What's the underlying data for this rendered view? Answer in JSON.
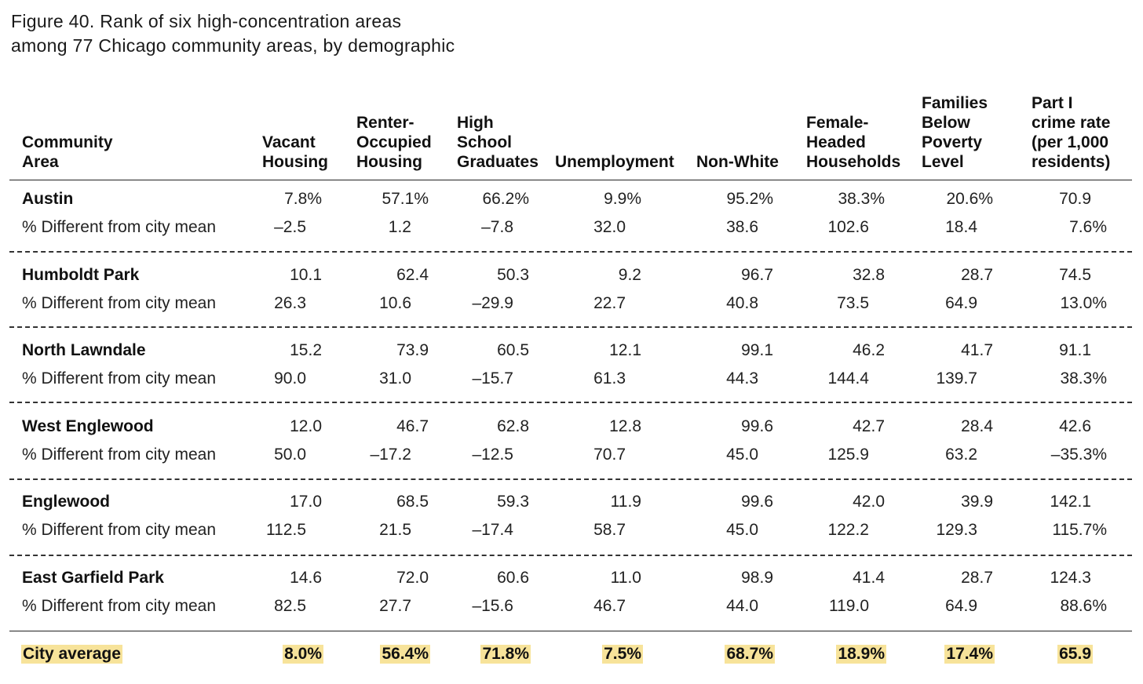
{
  "title": {
    "line1": "Figure 40. Rank of six high-concentration areas",
    "line2": "among 77 Chicago community areas, by demographic"
  },
  "columns": [
    {
      "lines": [
        "Community",
        "Area"
      ]
    },
    {
      "lines": [
        "Vacant",
        "Housing"
      ]
    },
    {
      "lines": [
        "Renter-",
        "Occupied",
        "Housing"
      ]
    },
    {
      "lines": [
        "High",
        "School",
        "Graduates"
      ]
    },
    {
      "lines": [
        "Unemployment"
      ]
    },
    {
      "lines": [
        "Non-White"
      ]
    },
    {
      "lines": [
        "Female-",
        "Headed",
        "Households"
      ]
    },
    {
      "lines": [
        "Families",
        "Below",
        "Poverty",
        "Level"
      ]
    },
    {
      "lines": [
        "Part I",
        "crime rate",
        "(per 1,000",
        "residents)"
      ]
    }
  ],
  "rows": [
    {
      "name": "Austin",
      "values": [
        "7.8%",
        "57.1%",
        "66.2%",
        "9.9%",
        "95.2%",
        "38.3%",
        "20.6%",
        "70.9"
      ],
      "diff_label": "% Different from city mean",
      "diffs": [
        "–2.5",
        "1.2",
        "–7.8",
        "32.0",
        "38.6",
        "102.6",
        "18.4",
        "7.6%"
      ]
    },
    {
      "name": "Humboldt Park",
      "values": [
        "10.1",
        "62.4",
        "50.3",
        "9.2",
        "96.7",
        "32.8",
        "28.7",
        "74.5"
      ],
      "diff_label": "% Different from city mean",
      "diffs": [
        "26.3",
        "10.6",
        "–29.9",
        "22.7",
        "40.8",
        "73.5",
        "64.9",
        "13.0%"
      ]
    },
    {
      "name": "North Lawndale",
      "values": [
        "15.2",
        "73.9",
        "60.5",
        "12.1",
        "99.1",
        "46.2",
        "41.7",
        "91.1"
      ],
      "diff_label": "% Different from city mean",
      "diffs": [
        "90.0",
        "31.0",
        "–15.7",
        "61.3",
        "44.3",
        "144.4",
        "139.7",
        "38.3%"
      ]
    },
    {
      "name": "West Englewood",
      "values": [
        "12.0",
        "46.7",
        "62.8",
        "12.8",
        "99.6",
        "42.7",
        "28.4",
        "42.6"
      ],
      "diff_label": "% Different from city mean",
      "diffs": [
        "50.0",
        "–17.2",
        "–12.5",
        "70.7",
        "45.0",
        "125.9",
        "63.2",
        "–35.3%"
      ]
    },
    {
      "name": "Englewood",
      "values": [
        "17.0",
        "68.5",
        "59.3",
        "11.9",
        "99.6",
        "42.0",
        "39.9",
        "142.1"
      ],
      "diff_label": "% Different from city mean",
      "diffs": [
        "112.5",
        "21.5",
        "–17.4",
        "58.7",
        "45.0",
        "122.2",
        "129.3",
        "115.7%"
      ]
    },
    {
      "name": "East Garfield Park",
      "values": [
        "14.6",
        "72.0",
        "60.6",
        "11.0",
        "98.9",
        "41.4",
        "28.7",
        "124.3"
      ],
      "diff_label": "% Different from city mean",
      "diffs": [
        "82.5",
        "27.7",
        "–15.6",
        "46.7",
        "44.0",
        "119.0",
        "64.9",
        "88.6%"
      ]
    }
  ],
  "city_average": {
    "label": "City average",
    "values": [
      "8.0%",
      "56.4%",
      "71.8%",
      "7.5%",
      "68.7%",
      "18.9%",
      "17.4%",
      "65.9"
    ]
  },
  "colors": {
    "highlight": "#f7e39a",
    "text": "#111111"
  }
}
